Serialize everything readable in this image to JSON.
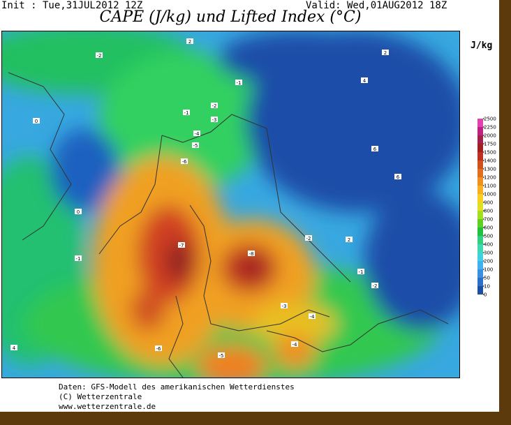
{
  "header": {
    "init": "Init : Tue,31JUL2012 12Z",
    "valid": "Valid: Wed,01AUG2012 18Z",
    "title": "CAPE (J/kg) und Lifted Index (°C)"
  },
  "legend": {
    "unit": "J/kg",
    "ticks": [
      0,
      10,
      50,
      100,
      200,
      300,
      400,
      500,
      600,
      700,
      800,
      900,
      1000,
      1100,
      1200,
      1300,
      1400,
      1500,
      1750,
      2000,
      2250,
      2500
    ],
    "colors": [
      "#1c4fa0",
      "#2a6fc8",
      "#3a90e0",
      "#40b0f0",
      "#40d0e0",
      "#40d8b0",
      "#30d080",
      "#20c040",
      "#60d020",
      "#a0e020",
      "#e0e020",
      "#f8d020",
      "#f8b020",
      "#f09020",
      "#e07020",
      "#d05020",
      "#c03020",
      "#a02020",
      "#a02050",
      "#c02080",
      "#e040b0"
    ]
  },
  "contour_labels": [
    "-2",
    "0",
    "2",
    "-1",
    "-2",
    "-3",
    "-4",
    "-5",
    "-6",
    "-7",
    "-8",
    "-1",
    "0",
    "2",
    "4",
    "6",
    "-4",
    "-5",
    "-6",
    "-1",
    "-2",
    "-3",
    "-4",
    "-2",
    "-1",
    "6",
    "4",
    "2"
  ],
  "footer": [
    "Daten: GFS-Modell des amerikanischen Wetterdienstes",
    "(C) Wetterzentrale",
    "www.wetterzentrale.de"
  ]
}
